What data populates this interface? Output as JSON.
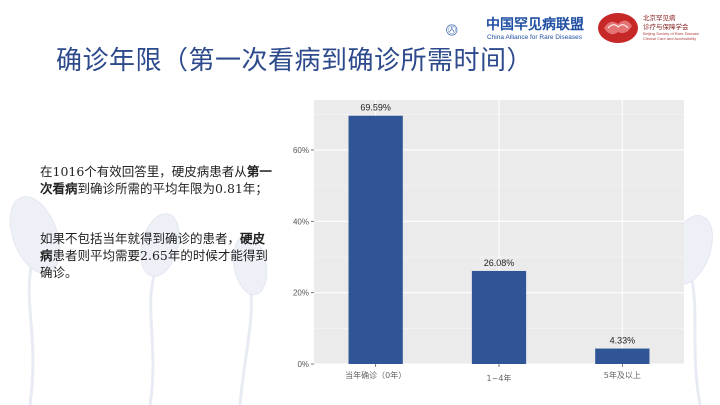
{
  "slide": {
    "title": "确诊年限（第一次看病到确诊所需时间）"
  },
  "logos": {
    "alliance_cn": "中国罕见病联盟",
    "alliance_en": "China Alliance for Rare Diseases",
    "society_cn_line1": "北京罕见病",
    "society_cn_line2": "诊疗与保障学会",
    "society_en": "Beijing Society of Rare Disease Clinical Care and Accessibility"
  },
  "text": {
    "p1_a": "在1016个有效回答里，硬皮病患者从",
    "p1_b_bold": "第一次看病",
    "p1_c": "到确诊所需的平均年限为0.81年；",
    "p2_a": "如果不包括当年就得到确诊的患者，",
    "p2_b_bold": "硬皮病",
    "p2_c": "患者则平均需要2.65年的时候才能得到确诊。"
  },
  "colors": {
    "title": "#2c4a8c",
    "bar": "#2f5597",
    "panel": "#ebebeb",
    "grid": "#ffffff"
  },
  "chart_data": {
    "type": "bar",
    "categories": [
      "当年确诊（0年）",
      "1~4年",
      "5年及以上"
    ],
    "values": [
      69.59,
      26.08,
      4.33
    ],
    "data_labels": [
      "69.59%",
      "26.08%",
      "4.33%"
    ],
    "yticks": [
      0,
      20,
      40,
      60
    ],
    "ytick_labels": [
      "0%",
      "20%",
      "40%",
      "60%"
    ],
    "ylim": [
      0,
      74
    ],
    "grid": true,
    "xlabel": "",
    "ylabel": ""
  }
}
